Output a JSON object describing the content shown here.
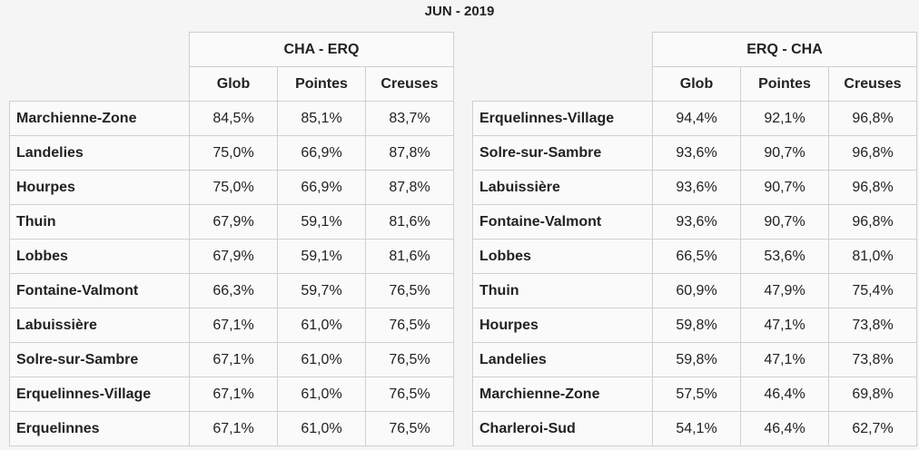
{
  "title": "JUN - 2019",
  "tables": [
    {
      "direction": "CHA - ERQ",
      "columns": [
        "Glob",
        "Pointes",
        "Creuses"
      ],
      "rows": [
        {
          "station": "Marchienne-Zone",
          "values": [
            "84,5%",
            "85,1%",
            "83,7%"
          ]
        },
        {
          "station": "Landelies",
          "values": [
            "75,0%",
            "66,9%",
            "87,8%"
          ]
        },
        {
          "station": "Hourpes",
          "values": [
            "75,0%",
            "66,9%",
            "87,8%"
          ]
        },
        {
          "station": "Thuin",
          "values": [
            "67,9%",
            "59,1%",
            "81,6%"
          ]
        },
        {
          "station": "Lobbes",
          "values": [
            "67,9%",
            "59,1%",
            "81,6%"
          ]
        },
        {
          "station": "Fontaine-Valmont",
          "values": [
            "66,3%",
            "59,7%",
            "76,5%"
          ]
        },
        {
          "station": "Labuissière",
          "values": [
            "67,1%",
            "61,0%",
            "76,5%"
          ]
        },
        {
          "station": "Solre-sur-Sambre",
          "values": [
            "67,1%",
            "61,0%",
            "76,5%"
          ]
        },
        {
          "station": "Erquelinnes-Village",
          "values": [
            "67,1%",
            "61,0%",
            "76,5%"
          ]
        },
        {
          "station": "Erquelinnes",
          "values": [
            "67,1%",
            "61,0%",
            "76,5%"
          ]
        }
      ]
    },
    {
      "direction": "ERQ - CHA",
      "columns": [
        "Glob",
        "Pointes",
        "Creuses"
      ],
      "rows": [
        {
          "station": "Erquelinnes-Village",
          "values": [
            "94,4%",
            "92,1%",
            "96,8%"
          ]
        },
        {
          "station": "Solre-sur-Sambre",
          "values": [
            "93,6%",
            "90,7%",
            "96,8%"
          ]
        },
        {
          "station": "Labuissière",
          "values": [
            "93,6%",
            "90,7%",
            "96,8%"
          ]
        },
        {
          "station": "Fontaine-Valmont",
          "values": [
            "93,6%",
            "90,7%",
            "96,8%"
          ]
        },
        {
          "station": "Lobbes",
          "values": [
            "66,5%",
            "53,6%",
            "81,0%"
          ]
        },
        {
          "station": "Thuin",
          "values": [
            "60,9%",
            "47,9%",
            "75,4%"
          ]
        },
        {
          "station": "Hourpes",
          "values": [
            "59,8%",
            "47,1%",
            "73,8%"
          ]
        },
        {
          "station": "Landelies",
          "values": [
            "59,8%",
            "47,1%",
            "73,8%"
          ]
        },
        {
          "station": "Marchienne-Zone",
          "values": [
            "57,5%",
            "46,4%",
            "69,8%"
          ]
        },
        {
          "station": "Charleroi-Sud",
          "values": [
            "54,1%",
            "46,4%",
            "62,7%"
          ]
        }
      ]
    }
  ]
}
